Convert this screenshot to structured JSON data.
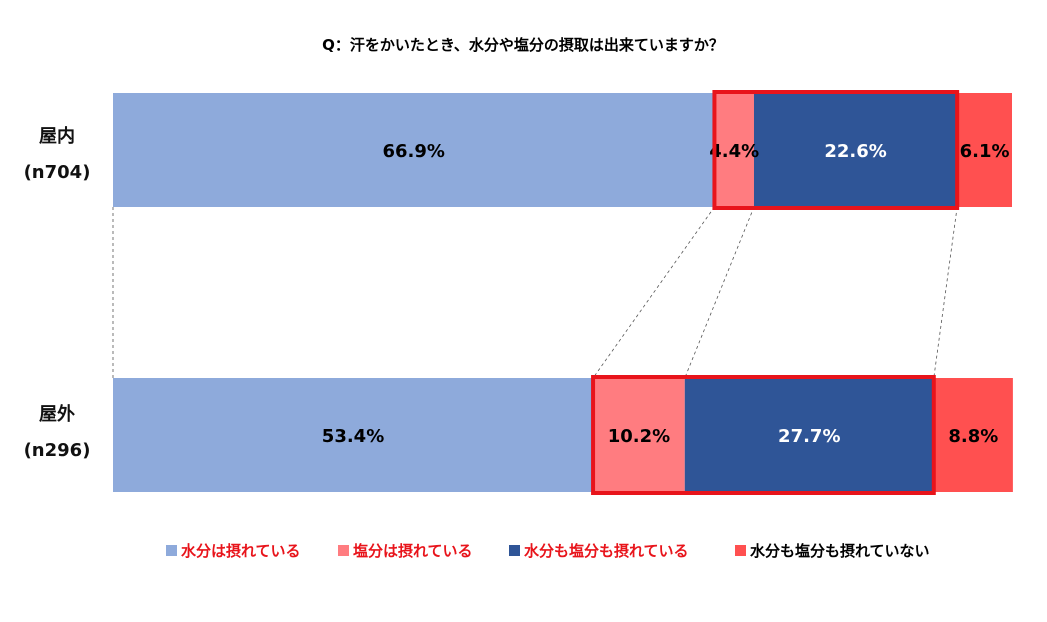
{
  "chart_data": {
    "type": "bar",
    "orientation": "horizontal",
    "stacked": "100%",
    "title": "Q：汗をかいたとき、水分や塩分の摂取は出来ていますか？",
    "categories": [
      {
        "name": "屋内",
        "n": "(n704)"
      },
      {
        "name": "屋外",
        "n": "(n296)"
      }
    ],
    "series": [
      {
        "name": "水分は摂れている",
        "values": [
          66.9,
          53.4
        ],
        "labels": [
          "66.9%",
          "53.4%"
        ],
        "color": "#8eaadb",
        "label_color": "#000000",
        "legend_text_color": "#e8141b"
      },
      {
        "name": "塩分は摂れている",
        "values": [
          4.4,
          10.2
        ],
        "labels": [
          "4.4%",
          "10.2%"
        ],
        "color": "#ff7c80",
        "label_color": "#000000",
        "legend_text_color": "#e8141b"
      },
      {
        "name": "水分も塩分も摂れている",
        "values": [
          22.6,
          27.7
        ],
        "labels": [
          "22.6%",
          "27.7%"
        ],
        "color": "#2f5597",
        "label_color": "#ffffff",
        "legend_text_color": "#e8141b"
      },
      {
        "name": "水分も塩分も摂れていない",
        "values": [
          6.1,
          8.8
        ],
        "labels": [
          "6.1%",
          "8.8%"
        ],
        "color": "#ff5050",
        "label_color": "#000000",
        "legend_text_color": "#000000"
      }
    ],
    "xlim": [
      0,
      100
    ],
    "highlight": {
      "series": [
        1,
        2
      ],
      "color": "#e8141b"
    },
    "connector_lines": "dashed",
    "legend_position": "bottom",
    "grid": false
  }
}
